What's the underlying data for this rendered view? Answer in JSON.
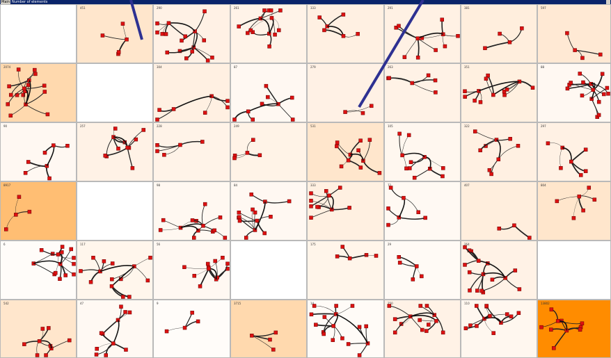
{
  "tab_label": "Main",
  "metric_label": "Number of elements",
  "cells": [
    {
      "label": "",
      "color": "#ffffff"
    },
    {
      "label": "451",
      "color": "#ffe6cc"
    },
    {
      "label": "290",
      "color": "#fff1e5"
    },
    {
      "label": "261",
      "color": "#fff3e8"
    },
    {
      "label": "333",
      "color": "#fff0e2"
    },
    {
      "label": "291",
      "color": "#fff1e4"
    },
    {
      "label": "381",
      "color": "#ffeedd"
    },
    {
      "label": "597",
      "color": "#ffe9d4"
    },
    {
      "label": "2074",
      "color": "#ffd9ae"
    },
    {
      "label": "",
      "color": "#ffffff"
    },
    {
      "label": "304",
      "color": "#fff0e2"
    },
    {
      "label": "87",
      "color": "#fff8f2"
    },
    {
      "label": "279",
      "color": "#fff1e5"
    },
    {
      "label": "263",
      "color": "#fff2e6"
    },
    {
      "label": "351",
      "color": "#fff0e0"
    },
    {
      "label": "88",
      "color": "#fff8f2"
    },
    {
      "label": "90",
      "color": "#fff8f2"
    },
    {
      "label": "257",
      "color": "#fff2e6"
    },
    {
      "label": "228",
      "color": "#fff3e8"
    },
    {
      "label": "249",
      "color": "#fff3e7"
    },
    {
      "label": "531",
      "color": "#ffe6cc"
    },
    {
      "label": "105",
      "color": "#fff7ef"
    },
    {
      "label": "322",
      "color": "#fff0e2"
    },
    {
      "label": "297",
      "color": "#fff1e4"
    },
    {
      "label": "8917",
      "color": "#ffbe73"
    },
    {
      "label": "",
      "color": "#ffffff"
    },
    {
      "label": "98",
      "color": "#fff8f1"
    },
    {
      "label": "84",
      "color": "#fff8f2"
    },
    {
      "label": "333",
      "color": "#fff0e1"
    },
    {
      "label": "72",
      "color": "#fff9f3"
    },
    {
      "label": "407",
      "color": "#ffeedd"
    },
    {
      "label": "804",
      "color": "#ffe6cc"
    },
    {
      "label": "6",
      "color": "#fffcf9"
    },
    {
      "label": "117",
      "color": "#fff6ec"
    },
    {
      "label": "56",
      "color": "#fff8f2"
    },
    {
      "label": "",
      "color": "#ffffff"
    },
    {
      "label": "175",
      "color": "#fff5ea"
    },
    {
      "label": "29",
      "color": "#fffaf5"
    },
    {
      "label": "264",
      "color": "#fff2e6"
    },
    {
      "label": "",
      "color": "#ffffff"
    },
    {
      "label": "542",
      "color": "#ffe6cc"
    },
    {
      "label": "47",
      "color": "#fff9f3"
    },
    {
      "label": "9",
      "color": "#fffcf9"
    },
    {
      "label": "3715",
      "color": "#ffd9ae"
    },
    {
      "label": "14",
      "color": "#fffbf7"
    },
    {
      "label": "250",
      "color": "#fff2e6"
    },
    {
      "label": "110",
      "color": "#fff7ef"
    },
    {
      "label": "13802",
      "color": "#ff8c00"
    }
  ]
}
